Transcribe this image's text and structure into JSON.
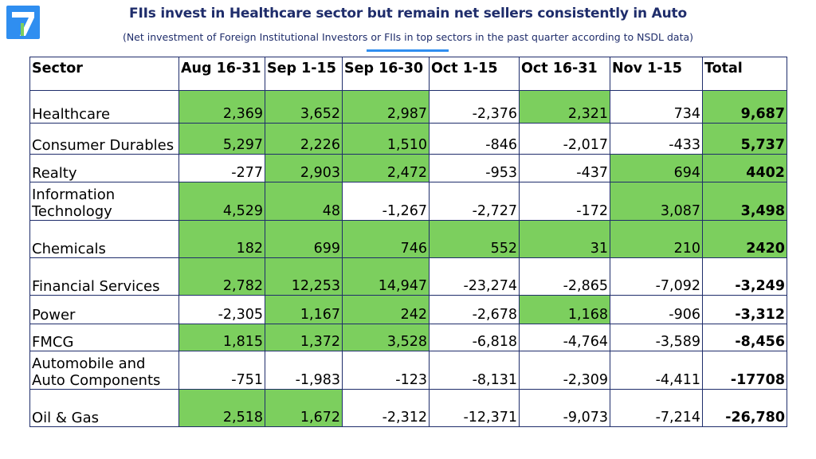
{
  "header": {
    "title": "FIIs invest in Healthcare sector but remain net sellers consistently in Auto",
    "subtitle": "(Net investment of Foreign Institutional Investors or FIIs in top sectors in the past quarter according to NSDL data)"
  },
  "colors": {
    "positive_fill": "#7ccf5e",
    "title": "#1f2d6b",
    "accent": "#2f8ef0"
  },
  "chart_data": {
    "type": "table",
    "columns": [
      "Sector",
      "Aug 16-31",
      "Sep 1-15",
      "Sep 16-30",
      "Oct 1-15",
      "Oct 16-31",
      "Nov 1-15",
      "Total"
    ],
    "rows": [
      {
        "sector": "Healthcare",
        "values": [
          "2,369",
          "3,652",
          "2,987",
          "-2,376",
          "2,321",
          "734"
        ],
        "total": "9,687",
        "highlight": [
          true,
          true,
          true,
          false,
          true,
          false,
          true
        ]
      },
      {
        "sector": "Consumer Durables",
        "values": [
          "5,297",
          "2,226",
          "1,510",
          "-846",
          "-2,017",
          "-433"
        ],
        "total": "5,737",
        "highlight": [
          true,
          true,
          true,
          false,
          false,
          false,
          true
        ]
      },
      {
        "sector": "Realty",
        "values": [
          "-277",
          "2,903",
          "2,472",
          "-953",
          "-437",
          "694"
        ],
        "total": "4402",
        "highlight": [
          false,
          true,
          true,
          false,
          false,
          true,
          true
        ]
      },
      {
        "sector": "Information Technology",
        "values": [
          "4,529",
          "48",
          "-1,267",
          "-2,727",
          "-172",
          "3,087"
        ],
        "total": "3,498",
        "highlight": [
          true,
          true,
          false,
          false,
          false,
          true,
          true
        ]
      },
      {
        "sector": "Chemicals",
        "values": [
          "182",
          "699",
          "746",
          "552",
          "31",
          "210"
        ],
        "total": "2420",
        "highlight": [
          true,
          true,
          true,
          true,
          true,
          true,
          true
        ]
      },
      {
        "sector": "Financial Services",
        "values": [
          "2,782",
          "12,253",
          "14,947",
          "-23,274",
          "-2,865",
          "-7,092"
        ],
        "total": "-3,249",
        "highlight": [
          true,
          true,
          true,
          false,
          false,
          false,
          false
        ]
      },
      {
        "sector": "Power",
        "values": [
          "-2,305",
          "1,167",
          "242",
          "-2,678",
          "1,168",
          "-906"
        ],
        "total": "-3,312",
        "highlight": [
          false,
          true,
          true,
          false,
          true,
          false,
          false
        ]
      },
      {
        "sector": "FMCG",
        "values": [
          "1,815",
          "1,372",
          "3,528",
          "-6,818",
          "-4,764",
          "-3,589"
        ],
        "total": "-8,456",
        "highlight": [
          true,
          true,
          true,
          false,
          false,
          false,
          false
        ]
      },
      {
        "sector": "Automobile and Auto Components",
        "values": [
          "-751",
          "-1,983",
          "-123",
          "-8,131",
          "-2,309",
          "-4,411"
        ],
        "total": "-17708",
        "highlight": [
          false,
          false,
          false,
          false,
          false,
          false,
          false
        ]
      },
      {
        "sector": "Oil & Gas",
        "values": [
          "2,518",
          "1,672",
          "-2,312",
          "-12,371",
          "-9,073",
          "-7,214"
        ],
        "total": "-26,780",
        "highlight": [
          true,
          true,
          false,
          false,
          false,
          false,
          false
        ]
      }
    ]
  }
}
